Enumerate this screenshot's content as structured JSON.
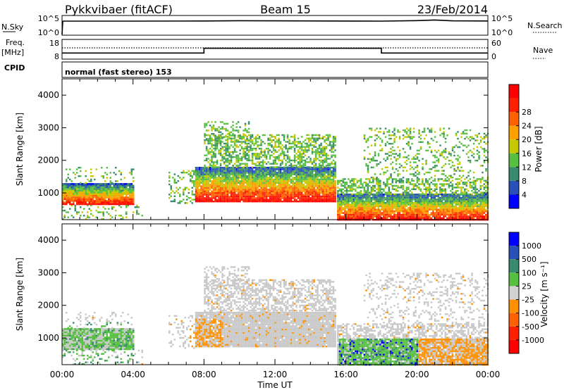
{
  "header": {
    "station": "Pykkvibaer (fitACF)",
    "beam": "Beam 15",
    "date": "23/Feb/2014"
  },
  "top_panels": {
    "nsky_label": "N.Sky",
    "nsky_ticks": [
      "10^5",
      "10^0"
    ],
    "nsearch_label": "N.Search",
    "nsearch_ticks": [
      "10^5",
      "10^0"
    ],
    "freq_label": "Freq.",
    "freq_unit": "[MHz]",
    "freq_ticks": [
      "18",
      "8"
    ],
    "nave_label": "Nave",
    "nave_ticks": [
      "60",
      "0"
    ],
    "cpid_label": "CPID",
    "cpid_text": "normal (fast stereo) 153"
  },
  "colors": {
    "background": "#ffffff",
    "ground_scatter": "#c8c8c8",
    "power_scale": [
      "#0000ff",
      "#2850b8",
      "#3a8a6e",
      "#58c040",
      "#c8c800",
      "#ffa000",
      "#ff6000",
      "#ff2000",
      "#ff0000"
    ],
    "velocity_scale": [
      "#0000ff",
      "#2850b8",
      "#3a8a6e",
      "#58c040",
      "#d2d2d2",
      "#ff9000",
      "#ff6000",
      "#ff2000",
      "#ff0000"
    ]
  },
  "chart_data": [
    {
      "type": "line",
      "panel": "nsky-nsearch",
      "x_ticks": [
        "00:00",
        "04:00",
        "08:00",
        "12:00",
        "16:00",
        "20:00",
        "00:00"
      ],
      "xlim": [
        0,
        24
      ],
      "ylim": [
        1,
        100000
      ],
      "yscale": "log",
      "series": [
        {
          "x": [
            0,
            0.04,
            0.1,
            4,
            8,
            10,
            12,
            15,
            18,
            20,
            21,
            22,
            24
          ],
          "values": [
            1,
            8000,
            9000,
            9000,
            10000,
            12000,
            11000,
            10000,
            9000,
            13000,
            20000,
            11000,
            10000
          ]
        }
      ]
    },
    {
      "type": "line",
      "panel": "freq-nave",
      "x_ticks": [
        "00:00",
        "04:00",
        "08:00",
        "12:00",
        "16:00",
        "20:00",
        "00:00"
      ],
      "xlim": [
        0,
        24
      ],
      "ylim": [
        8,
        18
      ],
      "ytick_values": [
        8,
        18
      ],
      "series": [
        {
          "x": [
            0,
            8.0,
            8.0,
            18.0,
            18.0,
            24
          ],
          "values": [
            11.1,
            11.1,
            13.5,
            13.5,
            11.1,
            11.1
          ]
        },
        {
          "x": [
            0,
            24
          ],
          "values": [
            13.7,
            13.7
          ]
        }
      ]
    },
    {
      "type": "heatmap",
      "panel": "power",
      "x_ticks": [
        "00:00",
        "04:00",
        "08:00",
        "12:00",
        "16:00",
        "20:00",
        "00:00"
      ],
      "xlim": [
        0,
        24
      ],
      "xlabel": "",
      "ylabel": "Slant Range [km]",
      "ylim": [
        180,
        4500
      ],
      "y_ticks": [
        1000,
        2000,
        3000,
        4000
      ],
      "colorbar_label": "Power [dB]",
      "colorbar_ticks": [
        "4",
        "8",
        "12",
        "16",
        "20",
        "24",
        "28"
      ],
      "bands": [
        {
          "t0": 0.0,
          "t1": 4.5,
          "r0": 180,
          "r1": 640,
          "dens": 0.18
        },
        {
          "t0": 0.0,
          "t1": 4.0,
          "r0": 640,
          "r1": 1300,
          "dens": 0.98
        },
        {
          "t0": 0.2,
          "t1": 4.0,
          "r0": 1300,
          "r1": 1800,
          "dens": 0.18
        },
        {
          "t0": 6.0,
          "t1": 7.6,
          "r0": 700,
          "r1": 1700,
          "dens": 0.28
        },
        {
          "t0": 7.5,
          "t1": 15.4,
          "r0": 750,
          "r1": 1800,
          "dens": 0.97
        },
        {
          "t0": 8.0,
          "t1": 15.4,
          "r0": 1800,
          "r1": 2800,
          "dens": 0.55
        },
        {
          "t0": 8.0,
          "t1": 10.5,
          "r0": 2600,
          "r1": 3200,
          "dens": 0.32
        },
        {
          "t0": 15.5,
          "t1": 24.0,
          "r0": 180,
          "r1": 980,
          "dens": 0.96
        },
        {
          "t0": 15.5,
          "t1": 24.0,
          "r0": 980,
          "r1": 1450,
          "dens": 0.55
        },
        {
          "t0": 17.0,
          "t1": 24.0,
          "r0": 1450,
          "r1": 3000,
          "dens": 0.22
        }
      ]
    },
    {
      "type": "heatmap",
      "panel": "velocity",
      "x_ticks": [
        "00:00",
        "04:00",
        "08:00",
        "12:00",
        "16:00",
        "20:00",
        "00:00"
      ],
      "xlim": [
        0,
        24
      ],
      "xlabel": "Time UT",
      "ylabel": "Slant Range [km]",
      "ylim": [
        180,
        4500
      ],
      "y_ticks": [
        1000,
        2000,
        3000,
        4000
      ],
      "colorbar_label": "Velocity [m s⁻¹]",
      "colorbar_ticks": [
        "1000",
        "500",
        "100",
        "25",
        "-25",
        "-100",
        "-500",
        "-1000"
      ],
      "bands": [
        {
          "t0": 0.0,
          "t1": 4.5,
          "r0": 180,
          "r1": 640,
          "dens": 0.18
        },
        {
          "t0": 0.0,
          "t1": 4.0,
          "r0": 640,
          "r1": 1300,
          "dens": 0.98
        },
        {
          "t0": 0.2,
          "t1": 4.0,
          "r0": 1300,
          "r1": 1800,
          "dens": 0.18
        },
        {
          "t0": 6.0,
          "t1": 7.6,
          "r0": 700,
          "r1": 1700,
          "dens": 0.28
        },
        {
          "t0": 7.5,
          "t1": 15.4,
          "r0": 750,
          "r1": 1800,
          "dens": 0.97
        },
        {
          "t0": 8.0,
          "t1": 15.4,
          "r0": 1800,
          "r1": 2800,
          "dens": 0.55
        },
        {
          "t0": 8.0,
          "t1": 10.5,
          "r0": 2600,
          "r1": 3200,
          "dens": 0.32
        },
        {
          "t0": 15.5,
          "t1": 24.0,
          "r0": 180,
          "r1": 980,
          "dens": 0.96
        },
        {
          "t0": 15.5,
          "t1": 24.0,
          "r0": 980,
          "r1": 1450,
          "dens": 0.55
        },
        {
          "t0": 17.0,
          "t1": 24.0,
          "r0": 1450,
          "r1": 3000,
          "dens": 0.22
        }
      ]
    }
  ]
}
